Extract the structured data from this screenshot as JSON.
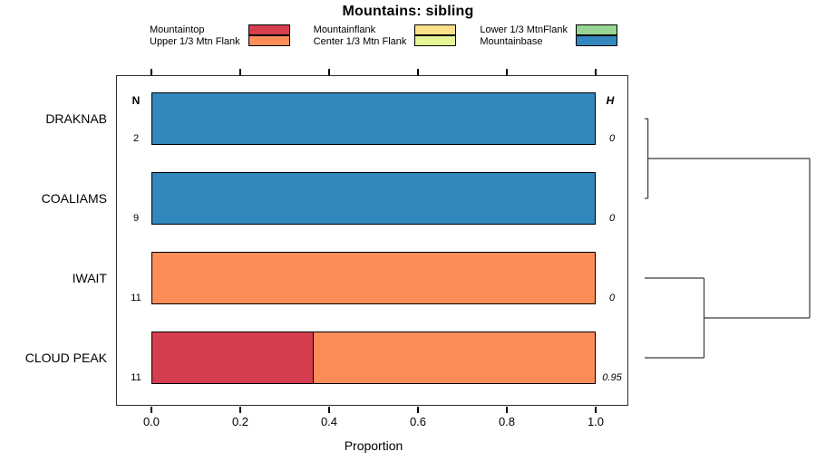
{
  "chart_data": {
    "type": "bar",
    "orientation": "horizontal-stacked",
    "title": "Mountains: sibling",
    "xlabel": "Proportion",
    "xlim": [
      0,
      1
    ],
    "x_tick_values": [
      0,
      0.2,
      0.4,
      0.6,
      0.8,
      1.0
    ],
    "x_tick_labels": [
      "0.0",
      "0.2",
      "0.4",
      "0.6",
      "0.8",
      "1.0"
    ],
    "n_header": "N",
    "h_header": "H",
    "legend": [
      {
        "label": "Mountaintop",
        "color": "#D53E4F"
      },
      {
        "label": "Upper 1/3 Mtn Flank",
        "color": "#FC8D59"
      },
      {
        "label": "Mountainflank",
        "color": "#FEE08B"
      },
      {
        "label": "Center 1/3 Mtn Flank",
        "color": "#E6F598"
      },
      {
        "label": "Lower 1/3 MtnFlank",
        "color": "#99D594"
      },
      {
        "label": "Mountainbase",
        "color": "#3288BD"
      }
    ],
    "rows": [
      {
        "label": "DRAKNAB",
        "n": "2",
        "h": "0",
        "segments": [
          {
            "name": "Mountainbase",
            "value": 1.0
          }
        ]
      },
      {
        "label": "COALIAMS",
        "n": "9",
        "h": "0",
        "segments": [
          {
            "name": "Mountainbase",
            "value": 1.0
          }
        ]
      },
      {
        "label": "IWAIT",
        "n": "11",
        "h": "0",
        "segments": [
          {
            "name": "Upper 1/3 Mtn Flank",
            "value": 1.0
          }
        ]
      },
      {
        "label": "CLOUD PEAK",
        "n": "11",
        "h": "0.95",
        "segments": [
          {
            "name": "Mountaintop",
            "value": 0.364
          },
          {
            "name": "Upper 1/3 Mtn Flank",
            "value": 0.636
          }
        ]
      }
    ],
    "dendrogram": {
      "side": "right",
      "merges": [
        {
          "children": [
            "L0",
            "L1"
          ],
          "height": 0.02
        },
        {
          "children": [
            "L2",
            "L3"
          ],
          "height": 0.36
        },
        {
          "children": [
            "M0",
            "M1"
          ],
          "height": 1.0
        }
      ]
    }
  }
}
